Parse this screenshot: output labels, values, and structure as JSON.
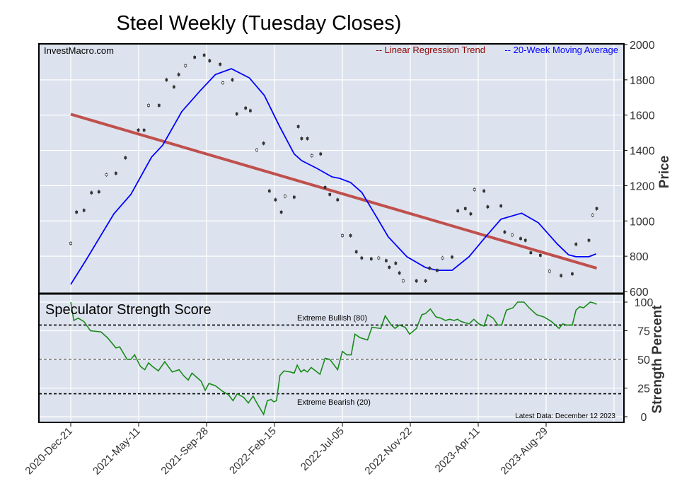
{
  "chart_data": {
    "type": "line",
    "title": "Steel Weekly (Tuesday Closes)",
    "watermark": "InvestMacro.com",
    "x_unit": "weeks since 2020-Dec-21",
    "x_ticks": [
      {
        "week": 0,
        "label": "2020-Dec-21"
      },
      {
        "week": 20,
        "label": "2021-May-11"
      },
      {
        "week": 40,
        "label": "2021-Sep-28"
      },
      {
        "week": 60,
        "label": "2022-Feb-15"
      },
      {
        "week": 80,
        "label": "2022-Jul-05"
      },
      {
        "week": 100,
        "label": "2022-Nov-22"
      },
      {
        "week": 120,
        "label": "2023-Apr-11"
      },
      {
        "week": 140,
        "label": "2023-Aug-29"
      }
    ],
    "price_panel": {
      "ylabel": "Price",
      "ylim": [
        600,
        2000
      ],
      "yticks": [
        600,
        800,
        1000,
        1200,
        1400,
        1600,
        1800,
        2000
      ],
      "legend": [
        {
          "label": "-- Linear Regression Trend",
          "color": "#8b0000"
        },
        {
          "label": "-- 20-Week Moving Average",
          "color": "#0000ff"
        }
      ],
      "candles": [
        [
          0,
          873
        ],
        [
          1.7,
          1050
        ],
        [
          3.9,
          1060
        ],
        [
          6.1,
          1160
        ],
        [
          8.3,
          1165
        ],
        [
          10.5,
          1262
        ],
        [
          13.3,
          1270
        ],
        [
          16.1,
          1358
        ],
        [
          19.9,
          1515
        ],
        [
          21.6,
          1515
        ],
        [
          22.9,
          1655
        ],
        [
          26,
          1655
        ],
        [
          28.2,
          1800
        ],
        [
          30.4,
          1760
        ],
        [
          31.8,
          1830
        ],
        [
          33.8,
          1880
        ],
        [
          36.5,
          1928
        ],
        [
          39.3,
          1940
        ],
        [
          40.9,
          1908
        ],
        [
          44,
          1888
        ],
        [
          44.8,
          1783
        ],
        [
          47.6,
          1800
        ],
        [
          48.9,
          1607
        ],
        [
          51.5,
          1640
        ],
        [
          52.9,
          1625
        ],
        [
          54.8,
          1402
        ],
        [
          56.8,
          1440
        ],
        [
          58.5,
          1170
        ],
        [
          60.3,
          1120
        ],
        [
          62,
          1050
        ],
        [
          63.1,
          1140
        ],
        [
          65.8,
          1135
        ],
        [
          67,
          1535
        ],
        [
          68,
          1467
        ],
        [
          69.7,
          1467
        ],
        [
          71,
          1370
        ],
        [
          73.6,
          1380
        ],
        [
          74.9,
          1190
        ],
        [
          76.3,
          1150
        ],
        [
          78.6,
          1120
        ],
        [
          80,
          917
        ],
        [
          82.4,
          917
        ],
        [
          84.1,
          825
        ],
        [
          85.7,
          790
        ],
        [
          88.5,
          785
        ],
        [
          90.7,
          790
        ],
        [
          92.9,
          775
        ],
        [
          93.8,
          737
        ],
        [
          95.7,
          760
        ],
        [
          96.8,
          705
        ],
        [
          97.9,
          660
        ],
        [
          101.8,
          660
        ],
        [
          104.5,
          660
        ],
        [
          105.7,
          732
        ],
        [
          107.9,
          720
        ],
        [
          109.5,
          790
        ],
        [
          112.3,
          795
        ],
        [
          114,
          1057
        ],
        [
          116.2,
          1070
        ],
        [
          117.8,
          1040
        ],
        [
          118.9,
          1178
        ],
        [
          121.7,
          1170
        ],
        [
          122.8,
          1080
        ],
        [
          126.7,
          1085
        ],
        [
          127.8,
          937
        ],
        [
          130,
          920
        ],
        [
          132.5,
          900
        ],
        [
          133.9,
          890
        ],
        [
          135.5,
          820
        ],
        [
          138.3,
          805
        ],
        [
          141,
          715
        ],
        [
          144.4,
          690
        ],
        [
          147.7,
          700
        ],
        [
          148.8,
          868
        ],
        [
          152.6,
          890
        ],
        [
          153.7,
          1033
        ],
        [
          154.9,
          1070
        ]
      ],
      "moving_average": [
        [
          0,
          640
        ],
        [
          4.4,
          775
        ],
        [
          12.7,
          1040
        ],
        [
          17.7,
          1150
        ],
        [
          23.8,
          1362
        ],
        [
          27.1,
          1430
        ],
        [
          32.7,
          1620
        ],
        [
          38.2,
          1740
        ],
        [
          42.6,
          1830
        ],
        [
          47.3,
          1863
        ],
        [
          52.6,
          1811
        ],
        [
          57,
          1712
        ],
        [
          61.4,
          1540
        ],
        [
          65.8,
          1380
        ],
        [
          68,
          1342
        ],
        [
          72.5,
          1298
        ],
        [
          76.9,
          1250
        ],
        [
          79.1,
          1242
        ],
        [
          82.4,
          1218
        ],
        [
          85.7,
          1162
        ],
        [
          90.2,
          1018
        ],
        [
          93.5,
          910
        ],
        [
          99,
          797
        ],
        [
          104.5,
          736
        ],
        [
          107.9,
          720
        ],
        [
          112.3,
          720
        ],
        [
          117.3,
          797
        ],
        [
          122.2,
          910
        ],
        [
          126.7,
          1010
        ],
        [
          132.8,
          1044
        ],
        [
          137.7,
          990
        ],
        [
          143.3,
          869
        ],
        [
          146.6,
          808
        ],
        [
          148.8,
          797
        ],
        [
          152.6,
          797
        ],
        [
          154.7,
          813
        ]
      ],
      "regression": [
        [
          0,
          1605
        ],
        [
          154.9,
          732
        ]
      ]
    },
    "strength_panel": {
      "title": "Speculator Strength Score",
      "ylabel": "Strength Percent",
      "ylim": [
        0,
        100
      ],
      "yticks": [
        0,
        25,
        50,
        75,
        100
      ],
      "bullish_level": 80,
      "bullish_label": "Extreme Bullish (80)",
      "midline": 50,
      "bearish_level": 20,
      "bearish_label": "Extreme Bearish (20)",
      "latest_note": "Latest Data: December 12 2023",
      "series": [
        [
          0,
          100
        ],
        [
          0.9,
          84
        ],
        [
          2.2,
          86
        ],
        [
          3.9,
          83
        ],
        [
          5.8,
          75
        ],
        [
          8.9,
          74
        ],
        [
          10.8,
          69
        ],
        [
          12.2,
          64
        ],
        [
          13.3,
          60
        ],
        [
          14.4,
          61
        ],
        [
          16.6,
          50
        ],
        [
          17.7,
          50
        ],
        [
          18.8,
          54
        ],
        [
          20.5,
          44
        ],
        [
          21.8,
          41
        ],
        [
          22.9,
          47
        ],
        [
          24,
          44
        ],
        [
          25.8,
          40
        ],
        [
          27.7,
          48
        ],
        [
          29.9,
          39
        ],
        [
          31.9,
          41
        ],
        [
          33.2,
          36
        ],
        [
          34.6,
          32
        ],
        [
          35.7,
          38
        ],
        [
          38.4,
          31
        ],
        [
          39.6,
          23
        ],
        [
          40.7,
          29
        ],
        [
          42.6,
          27
        ],
        [
          44.8,
          22
        ],
        [
          46.5,
          19
        ],
        [
          47.8,
          14
        ],
        [
          49,
          20
        ],
        [
          50.9,
          17
        ],
        [
          52.3,
          12
        ],
        [
          53.7,
          18
        ],
        [
          54.8,
          12
        ],
        [
          56.8,
          2
        ],
        [
          57.9,
          14
        ],
        [
          59,
          15
        ],
        [
          59.8,
          13
        ],
        [
          60.6,
          14
        ],
        [
          61.6,
          36
        ],
        [
          62.8,
          40
        ],
        [
          64.7,
          39
        ],
        [
          65.8,
          38
        ],
        [
          66.7,
          45
        ],
        [
          67.8,
          39
        ],
        [
          68.7,
          41
        ],
        [
          69.7,
          39
        ],
        [
          70.8,
          43
        ],
        [
          73.4,
          37
        ],
        [
          74.9,
          51
        ],
        [
          76.3,
          50
        ],
        [
          78.6,
          41
        ],
        [
          80,
          57
        ],
        [
          81.3,
          54
        ],
        [
          82.6,
          54
        ],
        [
          83.7,
          72
        ],
        [
          85.2,
          69
        ],
        [
          87.4,
          67
        ],
        [
          88.7,
          78
        ],
        [
          91.3,
          77
        ],
        [
          92.6,
          88
        ],
        [
          94.4,
          80
        ],
        [
          95.5,
          77
        ],
        [
          96.8,
          80
        ],
        [
          98.5,
          78
        ],
        [
          99.8,
          72
        ],
        [
          101.8,
          77
        ],
        [
          103.4,
          89
        ],
        [
          104.5,
          90
        ],
        [
          105.9,
          94
        ],
        [
          107.6,
          87
        ],
        [
          109,
          86
        ],
        [
          110.3,
          84
        ],
        [
          111.6,
          85
        ],
        [
          112.9,
          84
        ],
        [
          113.9,
          85
        ],
        [
          115,
          83
        ],
        [
          117.3,
          81
        ],
        [
          118.7,
          85
        ],
        [
          120.2,
          81
        ],
        [
          121.7,
          79
        ],
        [
          122.8,
          89
        ],
        [
          124.4,
          86
        ],
        [
          125.8,
          80
        ],
        [
          126.9,
          80
        ],
        [
          128.3,
          93
        ],
        [
          130.2,
          95
        ],
        [
          131.6,
          100
        ],
        [
          133.5,
          100
        ],
        [
          135,
          95
        ],
        [
          137.2,
          89
        ],
        [
          139.4,
          87
        ],
        [
          141.6,
          83
        ],
        [
          143.8,
          77
        ],
        [
          144.9,
          81
        ],
        [
          146,
          80
        ],
        [
          147.7,
          80
        ],
        [
          148.8,
          93
        ],
        [
          149.9,
          96
        ],
        [
          151,
          95
        ],
        [
          153,
          100
        ],
        [
          154.3,
          99
        ],
        [
          154.9,
          98
        ]
      ]
    }
  }
}
